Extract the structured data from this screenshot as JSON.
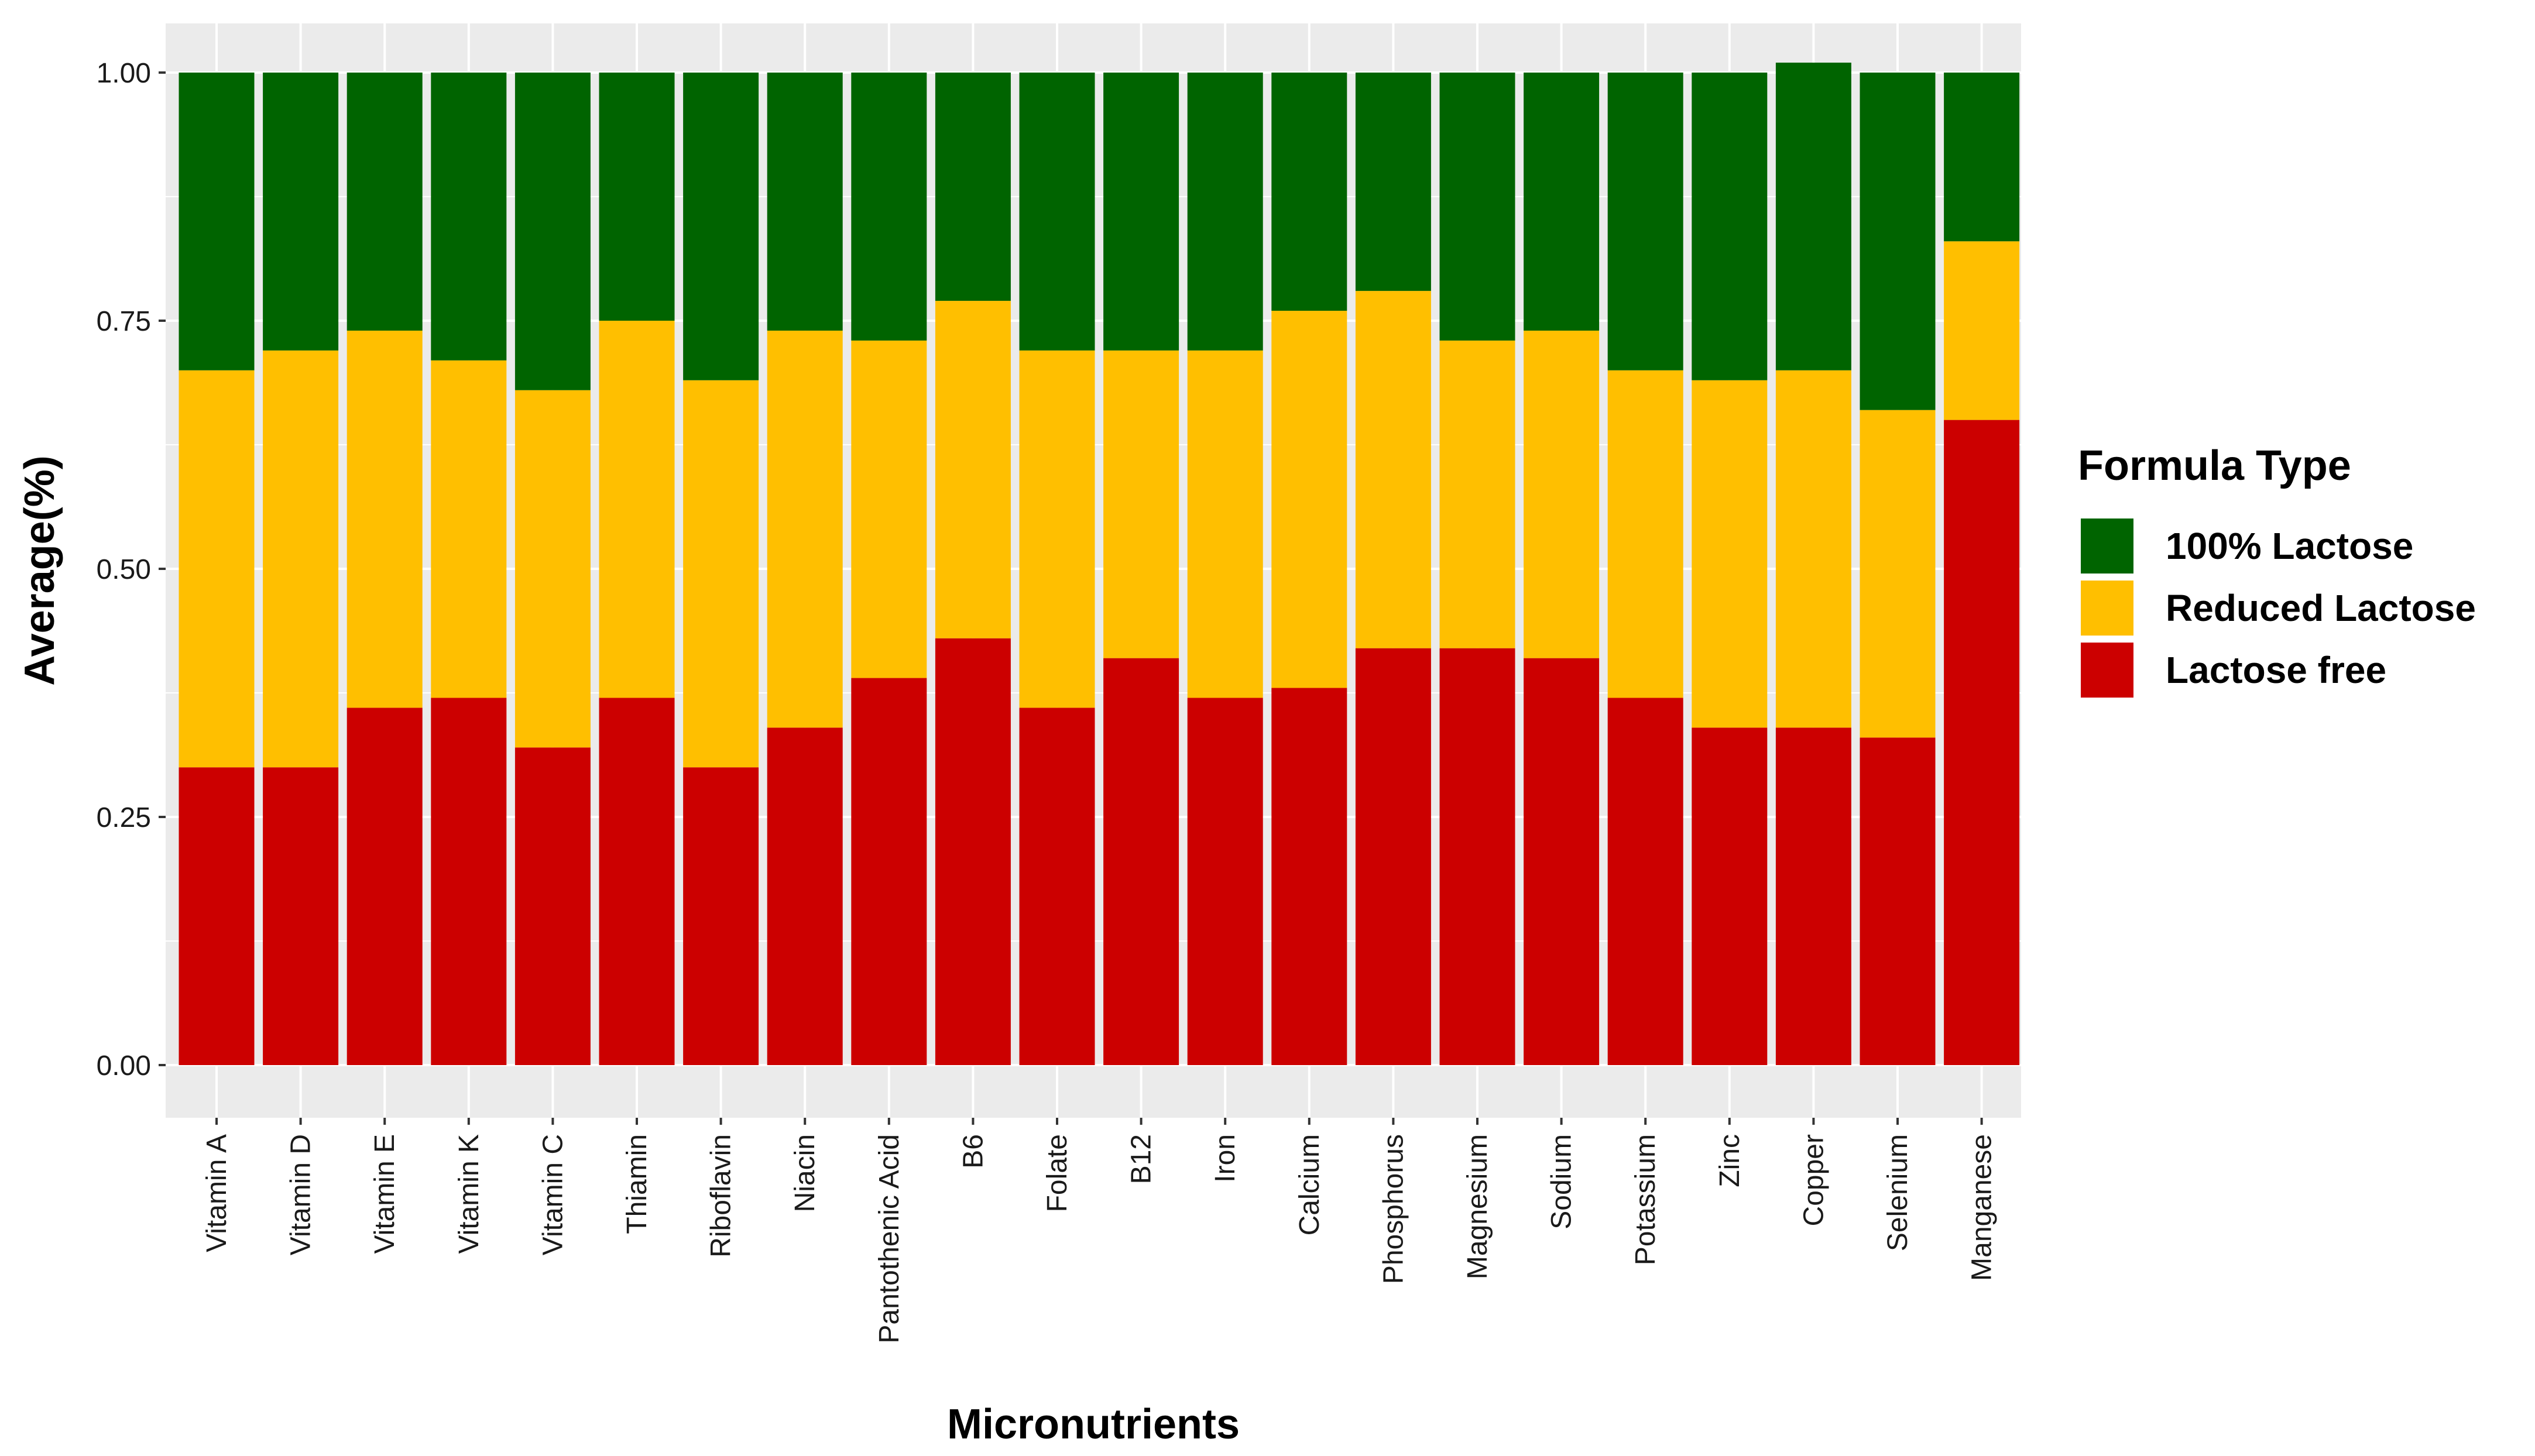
{
  "chart_data": {
    "type": "bar",
    "stacked": true,
    "xlabel": "Micronutrients",
    "ylabel": "Average(%)",
    "ylim": [
      0,
      1
    ],
    "yticks": [
      "0.00",
      "0.25",
      "0.50",
      "0.75",
      "1.00"
    ],
    "grid": true,
    "legend_title": "Formula Type",
    "legend_position": "right",
    "categories": [
      "Vitamin A",
      "Vitamin D",
      "Vitamin E",
      "Vitamin K",
      "Vitamin C",
      "Thiamin",
      "Riboflavin",
      "Niacin",
      "Pantothenic Acid",
      "B6",
      "Folate",
      "B12",
      "Iron",
      "Calcium",
      "Phosphorus",
      "Magnesium",
      "Sodium",
      "Potassium",
      "Zinc",
      "Copper",
      "Selenium",
      "Manganese"
    ],
    "series": [
      {
        "name": "Lactose free",
        "color": "#CC0000",
        "values": [
          0.3,
          0.3,
          0.36,
          0.37,
          0.32,
          0.37,
          0.3,
          0.34,
          0.39,
          0.43,
          0.36,
          0.41,
          0.37,
          0.38,
          0.42,
          0.42,
          0.41,
          0.37,
          0.34,
          0.34,
          0.33,
          0.65
        ]
      },
      {
        "name": "Reduced Lactose",
        "color": "#FFBF00",
        "values": [
          0.4,
          0.42,
          0.38,
          0.34,
          0.36,
          0.38,
          0.39,
          0.4,
          0.34,
          0.34,
          0.36,
          0.31,
          0.35,
          0.38,
          0.36,
          0.31,
          0.33,
          0.33,
          0.35,
          0.36,
          0.33,
          0.18
        ]
      },
      {
        "name": "100% Lactose",
        "color": "#006400",
        "values": [
          0.3,
          0.28,
          0.26,
          0.29,
          0.32,
          0.25,
          0.31,
          0.26,
          0.27,
          0.23,
          0.28,
          0.28,
          0.28,
          0.24,
          0.22,
          0.27,
          0.26,
          0.3,
          0.31,
          0.31,
          0.34,
          0.17
        ]
      }
    ],
    "legend_order": [
      "100% Lactose",
      "Reduced Lactose",
      "Lactose free"
    ]
  }
}
